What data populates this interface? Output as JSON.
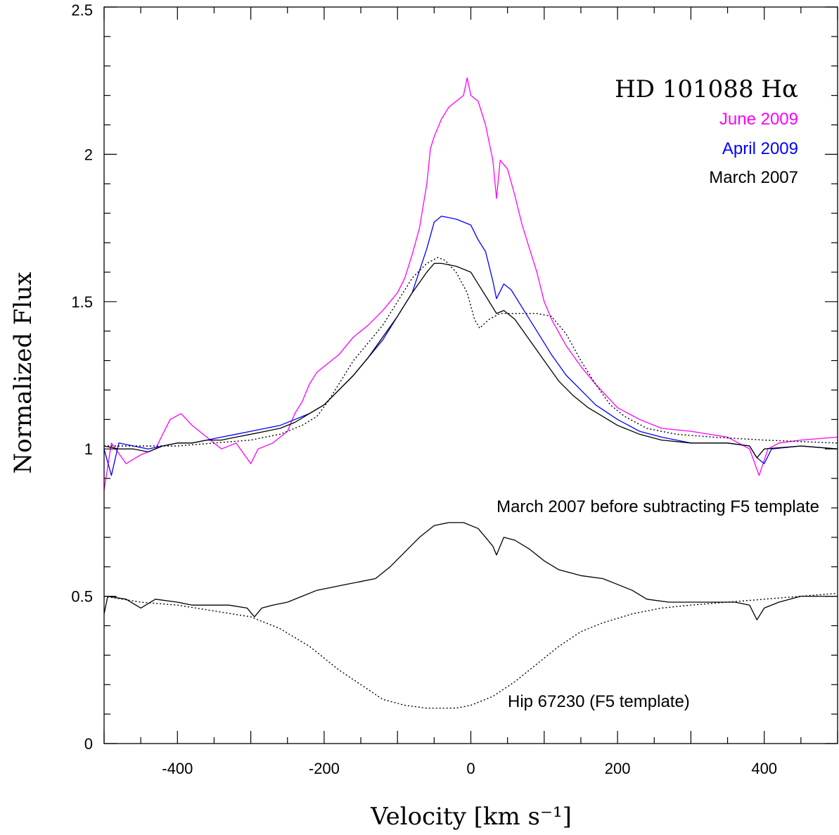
{
  "chart_data": {
    "type": "line",
    "title": "HD 101088 Hα",
    "xlabel": "Velocity [km s⁻¹]",
    "ylabel": "Normalized Flux",
    "xlim": [
      -500,
      500
    ],
    "ylim": [
      0,
      2.5
    ],
    "x_ticks": [
      -400,
      -200,
      0,
      200,
      400
    ],
    "y_ticks": [
      0,
      0.5,
      1,
      1.5,
      2,
      2.5
    ],
    "y_tick_labels": [
      "0",
      "0.5",
      "1",
      "1.5",
      "2",
      "2.5"
    ],
    "grid": false,
    "legend_position": "top-right",
    "series": [
      {
        "name": "June 2009",
        "color": "#ff00ff",
        "style": "solid",
        "points": [
          [
            -500,
            0.86
          ],
          [
            -490,
            1.02
          ],
          [
            -470,
            0.95
          ],
          [
            -450,
            0.98
          ],
          [
            -430,
            1.0
          ],
          [
            -410,
            1.1
          ],
          [
            -395,
            1.12
          ],
          [
            -380,
            1.08
          ],
          [
            -360,
            1.04
          ],
          [
            -340,
            1.0
          ],
          [
            -320,
            1.02
          ],
          [
            -300,
            0.95
          ],
          [
            -290,
            1.0
          ],
          [
            -270,
            1.02
          ],
          [
            -250,
            1.06
          ],
          [
            -240,
            1.12
          ],
          [
            -230,
            1.16
          ],
          [
            -220,
            1.22
          ],
          [
            -210,
            1.26
          ],
          [
            -200,
            1.28
          ],
          [
            -180,
            1.32
          ],
          [
            -160,
            1.38
          ],
          [
            -140,
            1.42
          ],
          [
            -120,
            1.47
          ],
          [
            -100,
            1.53
          ],
          [
            -90,
            1.58
          ],
          [
            -80,
            1.66
          ],
          [
            -70,
            1.75
          ],
          [
            -60,
            1.9
          ],
          [
            -55,
            2.02
          ],
          [
            -50,
            2.06
          ],
          [
            -40,
            2.12
          ],
          [
            -30,
            2.16
          ],
          [
            -20,
            2.18
          ],
          [
            -10,
            2.2
          ],
          [
            -5,
            2.26
          ],
          [
            0,
            2.2
          ],
          [
            10,
            2.18
          ],
          [
            20,
            2.1
          ],
          [
            30,
            1.98
          ],
          [
            35,
            1.85
          ],
          [
            40,
            1.98
          ],
          [
            50,
            1.95
          ],
          [
            60,
            1.86
          ],
          [
            70,
            1.76
          ],
          [
            80,
            1.68
          ],
          [
            90,
            1.6
          ],
          [
            100,
            1.5
          ],
          [
            110,
            1.44
          ],
          [
            130,
            1.35
          ],
          [
            150,
            1.28
          ],
          [
            170,
            1.22
          ],
          [
            200,
            1.14
          ],
          [
            230,
            1.1
          ],
          [
            260,
            1.07
          ],
          [
            300,
            1.06
          ],
          [
            350,
            1.04
          ],
          [
            380,
            1.0
          ],
          [
            393,
            0.91
          ],
          [
            405,
            1.0
          ],
          [
            420,
            1.02
          ],
          [
            450,
            1.03
          ],
          [
            500,
            1.04
          ]
        ]
      },
      {
        "name": "April 2009",
        "color": "#0000ff",
        "style": "solid",
        "points": [
          [
            -500,
            1.0
          ],
          [
            -490,
            0.91
          ],
          [
            -480,
            1.02
          ],
          [
            -460,
            1.01
          ],
          [
            -440,
            1.0
          ],
          [
            -420,
            1.01
          ],
          [
            -400,
            1.02
          ],
          [
            -380,
            1.02
          ],
          [
            -360,
            1.03
          ],
          [
            -340,
            1.04
          ],
          [
            -320,
            1.05
          ],
          [
            -300,
            1.06
          ],
          [
            -280,
            1.07
          ],
          [
            -260,
            1.08
          ],
          [
            -240,
            1.1
          ],
          [
            -220,
            1.12
          ],
          [
            -200,
            1.15
          ],
          [
            -180,
            1.2
          ],
          [
            -160,
            1.25
          ],
          [
            -140,
            1.31
          ],
          [
            -120,
            1.37
          ],
          [
            -100,
            1.45
          ],
          [
            -80,
            1.53
          ],
          [
            -60,
            1.68
          ],
          [
            -50,
            1.77
          ],
          [
            -40,
            1.79
          ],
          [
            -20,
            1.78
          ],
          [
            0,
            1.76
          ],
          [
            10,
            1.71
          ],
          [
            20,
            1.67
          ],
          [
            30,
            1.57
          ],
          [
            35,
            1.51
          ],
          [
            45,
            1.56
          ],
          [
            55,
            1.54
          ],
          [
            70,
            1.48
          ],
          [
            90,
            1.4
          ],
          [
            110,
            1.32
          ],
          [
            130,
            1.25
          ],
          [
            150,
            1.2
          ],
          [
            170,
            1.15
          ],
          [
            200,
            1.1
          ],
          [
            230,
            1.06
          ],
          [
            260,
            1.04
          ],
          [
            300,
            1.02
          ],
          [
            350,
            1.02
          ],
          [
            380,
            1.01
          ],
          [
            390,
            0.97
          ],
          [
            400,
            0.95
          ],
          [
            410,
            1.0
          ],
          [
            450,
            1.01
          ],
          [
            500,
            1.0
          ]
        ]
      },
      {
        "name": "March 2007",
        "color": "#000000",
        "style": "solid",
        "points": [
          [
            -500,
            1.01
          ],
          [
            -480,
            1.0
          ],
          [
            -460,
            1.0
          ],
          [
            -440,
            0.99
          ],
          [
            -420,
            1.01
          ],
          [
            -400,
            1.02
          ],
          [
            -380,
            1.02
          ],
          [
            -360,
            1.03
          ],
          [
            -340,
            1.03
          ],
          [
            -320,
            1.04
          ],
          [
            -300,
            1.05
          ],
          [
            -280,
            1.06
          ],
          [
            -260,
            1.07
          ],
          [
            -240,
            1.09
          ],
          [
            -220,
            1.12
          ],
          [
            -200,
            1.15
          ],
          [
            -180,
            1.2
          ],
          [
            -160,
            1.25
          ],
          [
            -140,
            1.31
          ],
          [
            -120,
            1.38
          ],
          [
            -100,
            1.45
          ],
          [
            -80,
            1.53
          ],
          [
            -60,
            1.6
          ],
          [
            -50,
            1.63
          ],
          [
            -40,
            1.63
          ],
          [
            -20,
            1.62
          ],
          [
            0,
            1.6
          ],
          [
            10,
            1.56
          ],
          [
            20,
            1.52
          ],
          [
            30,
            1.48
          ],
          [
            35,
            1.46
          ],
          [
            45,
            1.47
          ],
          [
            60,
            1.44
          ],
          [
            80,
            1.37
          ],
          [
            100,
            1.3
          ],
          [
            120,
            1.23
          ],
          [
            140,
            1.18
          ],
          [
            160,
            1.14
          ],
          [
            180,
            1.11
          ],
          [
            200,
            1.08
          ],
          [
            230,
            1.05
          ],
          [
            260,
            1.03
          ],
          [
            300,
            1.02
          ],
          [
            350,
            1.02
          ],
          [
            380,
            1.01
          ],
          [
            390,
            0.97
          ],
          [
            400,
            1.0
          ],
          [
            450,
            1.01
          ],
          [
            500,
            1.0
          ]
        ]
      },
      {
        "name": "",
        "color": "#000000",
        "style": "dotted",
        "points": [
          [
            -500,
            1.01
          ],
          [
            -450,
            1.01
          ],
          [
            -400,
            1.01
          ],
          [
            -350,
            1.02
          ],
          [
            -300,
            1.03
          ],
          [
            -260,
            1.05
          ],
          [
            -230,
            1.08
          ],
          [
            -210,
            1.11
          ],
          [
            -195,
            1.16
          ],
          [
            -180,
            1.22
          ],
          [
            -160,
            1.3
          ],
          [
            -140,
            1.36
          ],
          [
            -120,
            1.42
          ],
          [
            -100,
            1.5
          ],
          [
            -80,
            1.58
          ],
          [
            -60,
            1.63
          ],
          [
            -45,
            1.65
          ],
          [
            -35,
            1.64
          ],
          [
            -20,
            1.6
          ],
          [
            -5,
            1.53
          ],
          [
            5,
            1.44
          ],
          [
            12,
            1.41
          ],
          [
            25,
            1.44
          ],
          [
            40,
            1.46
          ],
          [
            60,
            1.46
          ],
          [
            90,
            1.46
          ],
          [
            110,
            1.45
          ],
          [
            130,
            1.39
          ],
          [
            150,
            1.3
          ],
          [
            170,
            1.22
          ],
          [
            190,
            1.15
          ],
          [
            210,
            1.11
          ],
          [
            240,
            1.07
          ],
          [
            280,
            1.05
          ],
          [
            330,
            1.04
          ],
          [
            400,
            1.03
          ],
          [
            500,
            1.02
          ]
        ]
      },
      {
        "name": "",
        "color": "#000000",
        "style": "solid",
        "points": [
          [
            -500,
            0.44
          ],
          [
            -495,
            0.5
          ],
          [
            -470,
            0.49
          ],
          [
            -450,
            0.46
          ],
          [
            -430,
            0.49
          ],
          [
            -400,
            0.48
          ],
          [
            -380,
            0.47
          ],
          [
            -350,
            0.47
          ],
          [
            -330,
            0.47
          ],
          [
            -305,
            0.46
          ],
          [
            -295,
            0.43
          ],
          [
            -285,
            0.46
          ],
          [
            -270,
            0.47
          ],
          [
            -250,
            0.48
          ],
          [
            -230,
            0.5
          ],
          [
            -210,
            0.52
          ],
          [
            -190,
            0.53
          ],
          [
            -170,
            0.54
          ],
          [
            -150,
            0.55
          ],
          [
            -130,
            0.56
          ],
          [
            -110,
            0.6
          ],
          [
            -90,
            0.65
          ],
          [
            -70,
            0.7
          ],
          [
            -50,
            0.74
          ],
          [
            -30,
            0.75
          ],
          [
            -10,
            0.75
          ],
          [
            10,
            0.73
          ],
          [
            20,
            0.7
          ],
          [
            30,
            0.67
          ],
          [
            35,
            0.64
          ],
          [
            45,
            0.7
          ],
          [
            60,
            0.69
          ],
          [
            80,
            0.66
          ],
          [
            100,
            0.62
          ],
          [
            120,
            0.59
          ],
          [
            150,
            0.57
          ],
          [
            180,
            0.56
          ],
          [
            200,
            0.54
          ],
          [
            220,
            0.52
          ],
          [
            240,
            0.49
          ],
          [
            270,
            0.48
          ],
          [
            300,
            0.48
          ],
          [
            330,
            0.48
          ],
          [
            360,
            0.48
          ],
          [
            380,
            0.47
          ],
          [
            390,
            0.42
          ],
          [
            400,
            0.46
          ],
          [
            420,
            0.48
          ],
          [
            450,
            0.5
          ],
          [
            480,
            0.5
          ],
          [
            500,
            0.5
          ]
        ]
      },
      {
        "name": "",
        "color": "#000000",
        "style": "dotted",
        "points": [
          [
            -500,
            0.5
          ],
          [
            -450,
            0.48
          ],
          [
            -400,
            0.47
          ],
          [
            -350,
            0.45
          ],
          [
            -300,
            0.43
          ],
          [
            -260,
            0.39
          ],
          [
            -220,
            0.33
          ],
          [
            -180,
            0.25
          ],
          [
            -150,
            0.2
          ],
          [
            -120,
            0.15
          ],
          [
            -90,
            0.13
          ],
          [
            -60,
            0.12
          ],
          [
            -40,
            0.12
          ],
          [
            -20,
            0.12
          ],
          [
            0,
            0.13
          ],
          [
            30,
            0.16
          ],
          [
            60,
            0.21
          ],
          [
            90,
            0.27
          ],
          [
            120,
            0.33
          ],
          [
            150,
            0.38
          ],
          [
            180,
            0.41
          ],
          [
            220,
            0.44
          ],
          [
            260,
            0.46
          ],
          [
            300,
            0.47
          ],
          [
            350,
            0.48
          ],
          [
            400,
            0.49
          ],
          [
            450,
            0.5
          ],
          [
            500,
            0.51
          ]
        ]
      }
    ],
    "annotations": [
      {
        "id": "before",
        "text": "March 2007 before subtracting F5 template"
      },
      {
        "id": "template",
        "text": "Hip 67230 (F5 template)"
      }
    ]
  }
}
